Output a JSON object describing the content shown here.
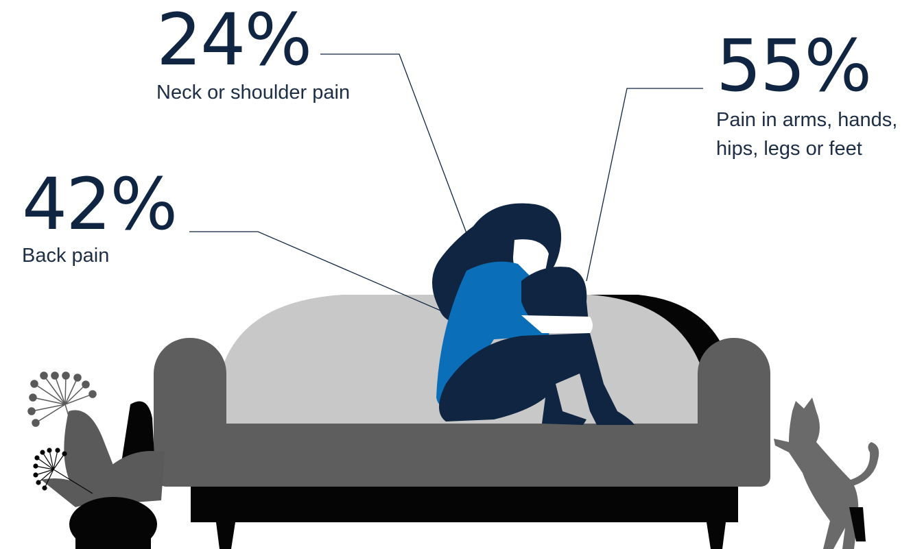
{
  "stats": [
    {
      "id": "neck",
      "percent": "24%",
      "label": "Neck or shoulder pain"
    },
    {
      "id": "limbs",
      "percent": "55%",
      "label_line1": "Pain in arms, hands,",
      "label_line2": "hips, legs or feet"
    },
    {
      "id": "back",
      "percent": "42%",
      "label": "Back pain"
    }
  ],
  "colors": {
    "text_navy": "#0f2542",
    "leader_line": "#0f2542",
    "sofa_arm": "#5e5e5e",
    "sofa_back": "#c8c8c8",
    "sofa_base": "#050505",
    "person_navy": "#0f2542",
    "person_blue": "#0a6eb9",
    "plant_gray": "#5a5a5a",
    "cat_gray": "#6a6a6a"
  },
  "icons": [
    "person-hugging-knees-illustration",
    "sofa-illustration",
    "potted-plant-illustration",
    "cat-illustration"
  ]
}
